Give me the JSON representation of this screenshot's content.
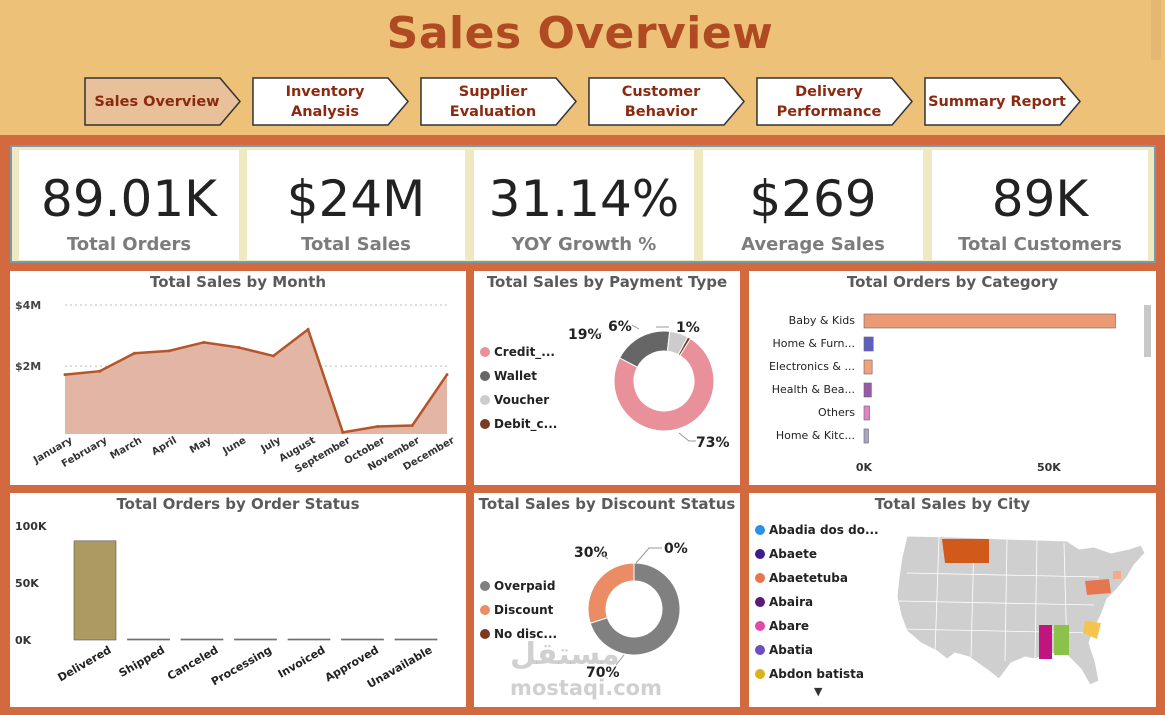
{
  "header": {
    "title": "Sales Overview"
  },
  "nav": [
    {
      "label": "Sales Overview",
      "active": true
    },
    {
      "label": "Inventory Analysis",
      "active": false
    },
    {
      "label": "Supplier Evaluation",
      "active": false
    },
    {
      "label": "Customer Behavior",
      "active": false
    },
    {
      "label": "Delivery Performance",
      "active": false
    },
    {
      "label": "Summary Report",
      "active": false
    }
  ],
  "kpis": [
    {
      "value": "89.01K",
      "label": "Total Orders"
    },
    {
      "value": "$24M",
      "label": "Total Sales"
    },
    {
      "value": "31.14%",
      "label": "YOY Growth %"
    },
    {
      "value": "$269",
      "label": "Average Sales"
    },
    {
      "value": "89K",
      "label": "Total Customers"
    }
  ],
  "colors": {
    "accent": "#d2693f",
    "header_bg": "#edc278",
    "title": "#b04a22",
    "area_fill": "#e3b5a5",
    "area_line": "#b5552a",
    "status_bar": "#ad9a60"
  },
  "chart_data": [
    {
      "id": "sales_by_month",
      "type": "area",
      "title": "Total Sales by Month",
      "categories": [
        "January",
        "February",
        "March",
        "April",
        "May",
        "June",
        "July",
        "August",
        "September",
        "October",
        "November",
        "December"
      ],
      "values": [
        1.75,
        1.85,
        2.38,
        2.45,
        2.7,
        2.55,
        2.3,
        3.08,
        0.05,
        0.22,
        0.25,
        1.75
      ],
      "ylim": [
        0,
        3.8
      ],
      "yticks": [
        {
          "v": 2,
          "label": "$2M"
        },
        {
          "v": 3.8,
          "label": "$4M"
        }
      ],
      "unit": "millions USD"
    },
    {
      "id": "sales_by_payment",
      "type": "pie",
      "title": "Total Sales by Payment Type",
      "labels": [
        "Credit_...",
        "Wallet",
        "Voucher",
        "Debit_c..."
      ],
      "values": [
        73,
        19,
        6,
        1
      ],
      "colors": [
        "#e8919b",
        "#666666",
        "#cccccc",
        "#7a3b20"
      ]
    },
    {
      "id": "orders_by_category",
      "type": "bar",
      "title": "Total Orders by Category",
      "categories": [
        "Baby & Kids",
        "Home & Furn...",
        "Electronics & ...",
        "Health & Bea...",
        "Others",
        "Home & Kitc..."
      ],
      "values": [
        68000,
        2500,
        2200,
        2000,
        1500,
        1200
      ],
      "colors": [
        "#ec9a74",
        "#5f5fc0",
        "#f0a27c",
        "#9a5aa8",
        "#e084c4",
        "#a9a4c6"
      ],
      "xlim": [
        0,
        73000
      ],
      "xticks": [
        {
          "v": 0,
          "label": "0K"
        },
        {
          "v": 50000,
          "label": "50K"
        }
      ]
    },
    {
      "id": "orders_by_status",
      "type": "bar",
      "title": "Total Orders by Order Status",
      "categories": [
        "Delivered",
        "Shipped",
        "Canceled",
        "Processing",
        "Invoiced",
        "Approved",
        "Unavailable"
      ],
      "values": [
        87000,
        500,
        450,
        300,
        280,
        20,
        600
      ],
      "ylim": [
        0,
        100000
      ],
      "yticks": [
        {
          "v": 0,
          "label": "0K"
        },
        {
          "v": 50000,
          "label": "50K"
        },
        {
          "v": 100000,
          "label": "100K"
        }
      ]
    },
    {
      "id": "sales_by_discount",
      "type": "pie",
      "title": "Total Sales by Discount Status",
      "labels": [
        "Overpaid",
        "Discount",
        "No disc..."
      ],
      "values": [
        70,
        30,
        0
      ],
      "colors": [
        "#808080",
        "#ea8c64",
        "#7a3b20"
      ]
    },
    {
      "id": "sales_by_city",
      "type": "map",
      "title": "Total Sales by City",
      "legend": [
        {
          "label": "Abadia dos do...",
          "color": "#2e8fe6"
        },
        {
          "label": "Abaete",
          "color": "#3a1f8c"
        },
        {
          "label": "Abaetetuba",
          "color": "#e5764e"
        },
        {
          "label": "Abaira",
          "color": "#5a1a78"
        },
        {
          "label": "Abare",
          "color": "#e04aa8"
        },
        {
          "label": "Abatia",
          "color": "#6a4fc0"
        },
        {
          "label": "Abdon batista",
          "color": "#dcb21c"
        }
      ]
    }
  ],
  "watermark": {
    "arabic": "مستقل",
    "latin": "mostaqi.com"
  }
}
